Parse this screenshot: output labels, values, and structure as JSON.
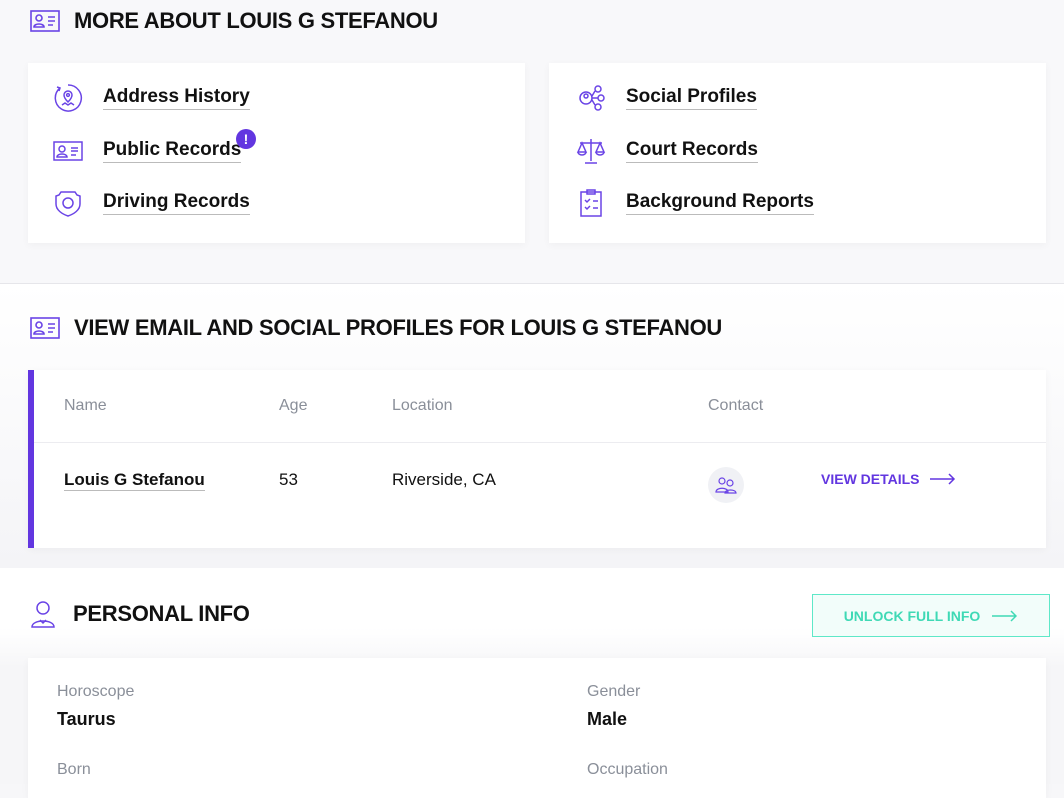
{
  "more": {
    "title": "MORE ABOUT LOUIS G STEFANOU",
    "links": [
      {
        "label": "Address History",
        "icon": "location-history-icon"
      },
      {
        "label": "Public Records",
        "icon": "id-card-icon",
        "badge": "!"
      },
      {
        "label": "Driving Records",
        "icon": "badge-shield-icon"
      },
      {
        "label": "Social Profiles",
        "icon": "social-network-icon"
      },
      {
        "label": "Court Records",
        "icon": "scales-icon"
      },
      {
        "label": "Background Reports",
        "icon": "clipboard-checklist-icon"
      }
    ]
  },
  "email": {
    "title": "VIEW EMAIL AND SOCIAL PROFILES FOR LOUIS G STEFANOU",
    "headers": [
      "Name",
      "Age",
      "Location",
      "Contact"
    ],
    "row": {
      "name": "Louis G Stefanou",
      "age": "53",
      "location": "Riverside, CA",
      "action": "VIEW DETAILS"
    }
  },
  "personal": {
    "title": "PERSONAL INFO",
    "unlock": "UNLOCK FULL INFO",
    "fields": [
      {
        "label": "Horoscope",
        "value": "Taurus"
      },
      {
        "label": "Gender",
        "value": "Male"
      },
      {
        "label": "Born",
        "value": ""
      },
      {
        "label": "Occupation",
        "value": ""
      }
    ]
  },
  "colors": {
    "accent": "#6236e0",
    "teal": "#3fd9b5"
  }
}
